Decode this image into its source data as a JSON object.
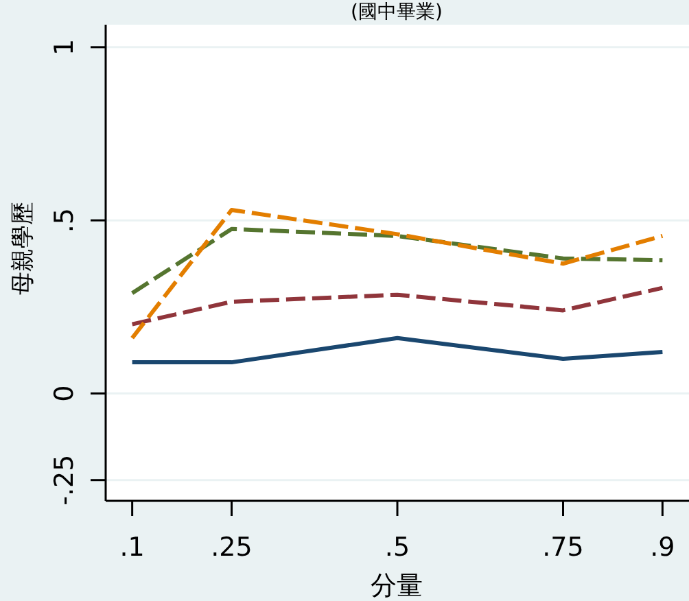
{
  "chart_data": {
    "type": "line",
    "title": "(國中畢業)",
    "xlabel": "分量",
    "ylabel": "母親學歷",
    "x": [
      0.1,
      0.25,
      0.5,
      0.75,
      0.9
    ],
    "xlim": [
      0.06,
      0.94
    ],
    "ylim": [
      -0.31,
      1.065
    ],
    "xticks": [
      {
        "value": 0.1,
        "label": ".1"
      },
      {
        "value": 0.25,
        "label": ".25"
      },
      {
        "value": 0.5,
        "label": ".5"
      },
      {
        "value": 0.75,
        "label": ".75"
      },
      {
        "value": 0.9,
        "label": ".9"
      }
    ],
    "yticks": [
      {
        "value": -0.25,
        "label": "-.25"
      },
      0,
      {
        "value": 0.5,
        "label": ".5"
      },
      1
    ],
    "grid": "y",
    "series": [
      {
        "color": "#1a476f",
        "line_style": "solid",
        "values": [
          0.09,
          0.09,
          0.16,
          0.1,
          0.12
        ]
      },
      {
        "color": "#90353b",
        "line_style": "dashed",
        "values": [
          0.2,
          0.265,
          0.285,
          0.24,
          0.305
        ]
      },
      {
        "color": "#55752f",
        "line_style": "dashed",
        "values": [
          0.29,
          0.475,
          0.455,
          0.39,
          0.385
        ]
      },
      {
        "color": "#e37e00",
        "line_style": "dashed",
        "values": [
          0.16,
          0.53,
          0.46,
          0.375,
          0.455
        ]
      }
    ]
  }
}
